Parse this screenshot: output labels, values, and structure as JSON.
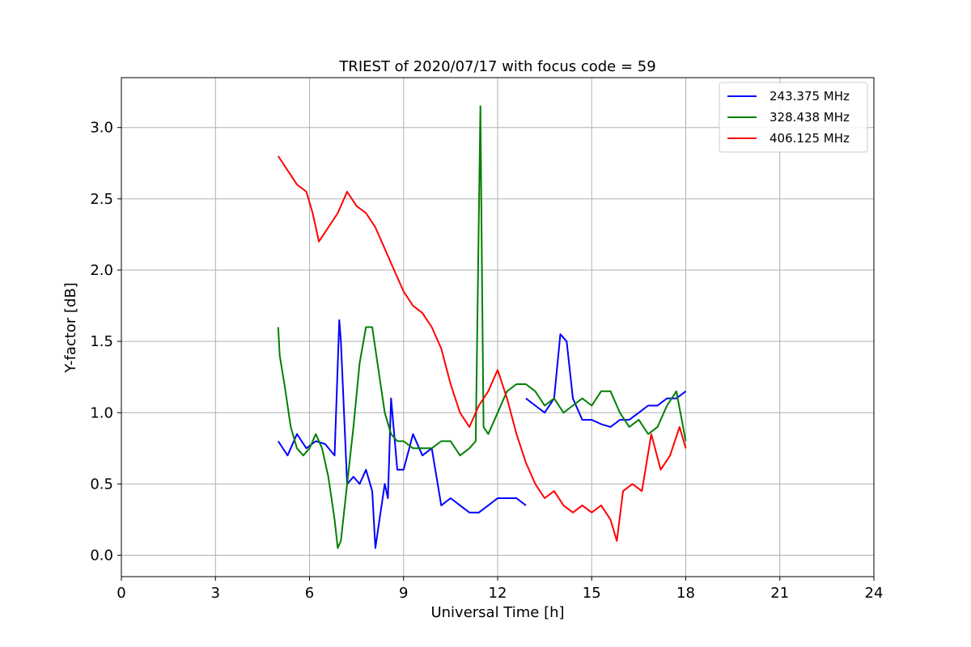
{
  "chart_data": {
    "type": "line",
    "title": "TRIEST of 2020/07/17 with focus code = 59",
    "xlabel": "Universal Time [h]",
    "ylabel": "Y-factor [dB]",
    "xlim": [
      0,
      24
    ],
    "ylim": [
      -0.15,
      3.35
    ],
    "x_ticks": [
      0,
      3,
      6,
      9,
      12,
      15,
      18,
      21,
      24
    ],
    "y_ticks": [
      0.0,
      0.5,
      1.0,
      1.5,
      2.0,
      2.5,
      3.0
    ],
    "y_tick_labels": [
      "0.0",
      "0.5",
      "1.0",
      "1.5",
      "2.0",
      "2.5",
      "3.0"
    ],
    "grid": true,
    "legend_position": "top-right",
    "series": [
      {
        "name": "243.375 MHz",
        "color": "#0000ff",
        "x": [
          5.0,
          5.3,
          5.6,
          5.9,
          6.2,
          6.5,
          6.8,
          6.95,
          7.0,
          7.2,
          7.4,
          7.6,
          7.8,
          8.0,
          8.1,
          8.2,
          8.4,
          8.5,
          8.6,
          8.8,
          9.0,
          9.3,
          9.6,
          9.9,
          10.2,
          10.5,
          10.8,
          11.1,
          11.4,
          11.7,
          12.0,
          12.3,
          12.6,
          12.9
        ],
        "y": [
          0.8,
          0.7,
          0.85,
          0.75,
          0.8,
          0.78,
          0.7,
          1.65,
          1.5,
          0.5,
          0.55,
          0.5,
          0.6,
          0.45,
          0.05,
          0.2,
          0.5,
          0.4,
          1.1,
          0.6,
          0.6,
          0.85,
          0.7,
          0.75,
          0.35,
          0.4,
          0.35,
          0.3,
          0.3,
          0.35,
          0.4,
          0.4,
          0.4,
          0.35
        ]
      },
      {
        "name": "243.375 MHz",
        "color": "#0000ff",
        "x": [
          12.9,
          13.2,
          13.5,
          13.8,
          14.0,
          14.2,
          14.4,
          14.7,
          15.0,
          15.3,
          15.6,
          15.9,
          16.2,
          16.5,
          16.8,
          17.1,
          17.4,
          17.7,
          18.0
        ],
        "y": [
          1.1,
          1.05,
          1.0,
          1.1,
          1.55,
          1.5,
          1.1,
          0.95,
          0.95,
          0.92,
          0.9,
          0.95,
          0.95,
          1.0,
          1.05,
          1.05,
          1.1,
          1.1,
          1.15
        ]
      },
      {
        "name": "328.438 MHz",
        "color": "#008000",
        "x": [
          5.0,
          5.05,
          5.2,
          5.4,
          5.6,
          5.8,
          6.0,
          6.2,
          6.4,
          6.6,
          6.8,
          6.9,
          7.0,
          7.2,
          7.4,
          7.6,
          7.8,
          8.0,
          8.2,
          8.4,
          8.6,
          8.8,
          9.0,
          9.3,
          9.6,
          9.9,
          10.2,
          10.5,
          10.8,
          11.1,
          11.3,
          11.45,
          11.5,
          11.55,
          11.7,
          12.0,
          12.3,
          12.6,
          12.9,
          13.2,
          13.5,
          13.8,
          14.1,
          14.4,
          14.7,
          15.0,
          15.3,
          15.6,
          15.9,
          16.2,
          16.5,
          16.8,
          17.1,
          17.4,
          17.7,
          18.0
        ],
        "y": [
          1.6,
          1.4,
          1.2,
          0.9,
          0.75,
          0.7,
          0.75,
          0.85,
          0.75,
          0.55,
          0.25,
          0.05,
          0.1,
          0.5,
          0.9,
          1.35,
          1.6,
          1.6,
          1.3,
          1.0,
          0.85,
          0.8,
          0.8,
          0.75,
          0.75,
          0.75,
          0.8,
          0.8,
          0.7,
          0.75,
          0.8,
          3.15,
          2.0,
          0.9,
          0.85,
          1.0,
          1.15,
          1.2,
          1.2,
          1.15,
          1.05,
          1.1,
          1.0,
          1.05,
          1.1,
          1.05,
          1.15,
          1.15,
          1.0,
          0.9,
          0.95,
          0.85,
          0.9,
          1.05,
          1.15,
          0.8
        ]
      },
      {
        "name": "406.125 MHz",
        "color": "#ff0000",
        "x": [
          5.0,
          5.3,
          5.6,
          5.9,
          6.1,
          6.3,
          6.6,
          6.9,
          7.2,
          7.5,
          7.8,
          8.1,
          8.4,
          8.7,
          9.0,
          9.3,
          9.6,
          9.9,
          10.2,
          10.5,
          10.8,
          11.1,
          11.4,
          11.7,
          12.0,
          12.3,
          12.6,
          12.9,
          13.2,
          13.5,
          13.8,
          14.1,
          14.4,
          14.7,
          15.0,
          15.3,
          15.6,
          15.8,
          16.0,
          16.3,
          16.6,
          16.9,
          17.2,
          17.5,
          17.8,
          18.0
        ],
        "y": [
          2.8,
          2.7,
          2.6,
          2.55,
          2.4,
          2.2,
          2.3,
          2.4,
          2.55,
          2.45,
          2.4,
          2.3,
          2.15,
          2.0,
          1.85,
          1.75,
          1.7,
          1.6,
          1.45,
          1.2,
          1.0,
          0.9,
          1.05,
          1.15,
          1.3,
          1.1,
          0.85,
          0.65,
          0.5,
          0.4,
          0.45,
          0.35,
          0.3,
          0.35,
          0.3,
          0.35,
          0.25,
          0.1,
          0.45,
          0.5,
          0.45,
          0.85,
          0.6,
          0.7,
          0.9,
          0.75
        ]
      }
    ],
    "legend": [
      {
        "name": "243.375 MHz",
        "color": "#0000ff"
      },
      {
        "name": "328.438 MHz",
        "color": "#008000"
      },
      {
        "name": "406.125 MHz",
        "color": "#ff0000"
      }
    ]
  }
}
